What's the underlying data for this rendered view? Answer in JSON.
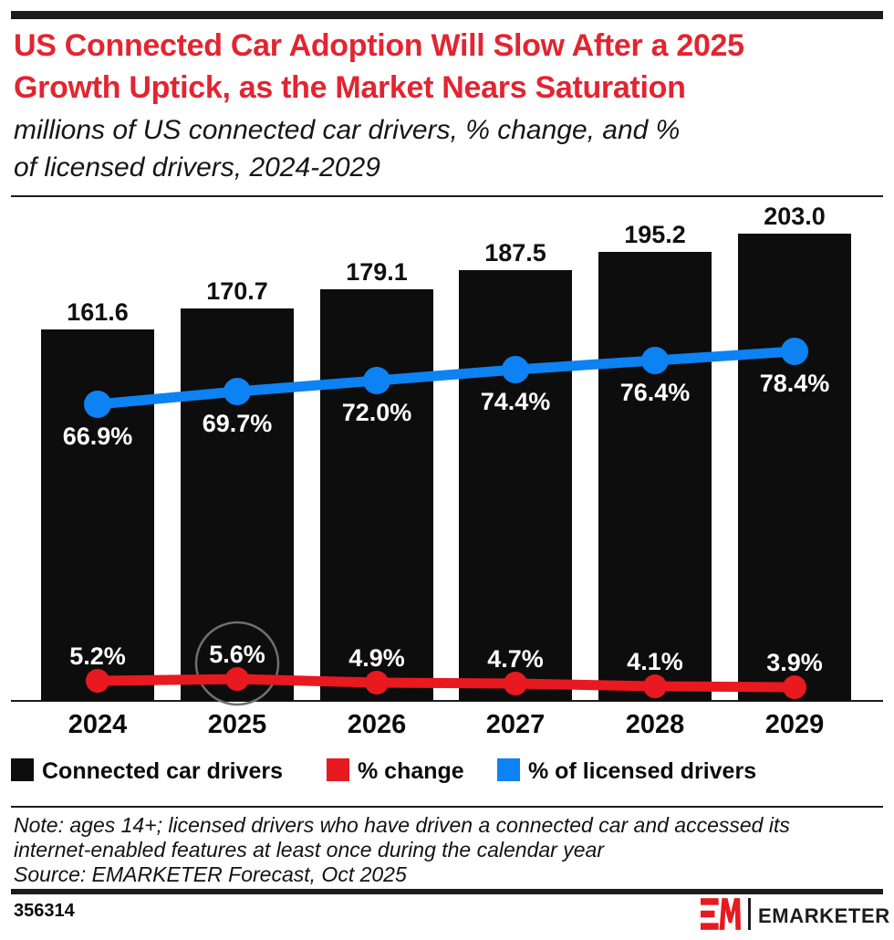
{
  "header": {
    "title_lines": [
      "US Connected Car Adoption Will Slow After a 2025",
      "Growth Uptick, as the Market Nears Saturation"
    ],
    "subtitle_lines": [
      "millions of US connected car drivers, % change, and %",
      "of licensed drivers, 2024-2029"
    ]
  },
  "chart_data": {
    "type": "combo-bar-line",
    "categories": [
      "2024",
      "2025",
      "2026",
      "2027",
      "2028",
      "2029"
    ],
    "series": [
      {
        "name": "Connected car drivers",
        "type": "bar",
        "unit": "millions",
        "color": "#0d0d0d",
        "values": [
          161.6,
          170.7,
          179.1,
          187.5,
          195.2,
          203.0
        ]
      },
      {
        "name": "% change",
        "type": "line",
        "unit": "%",
        "color": "#e8191f",
        "values": [
          5.2,
          5.6,
          4.9,
          4.7,
          4.1,
          3.9
        ]
      },
      {
        "name": "% of licensed drivers",
        "type": "line",
        "unit": "%",
        "color": "#0d82f2",
        "values": [
          66.9,
          69.7,
          72.0,
          74.4,
          76.4,
          78.4
        ]
      }
    ],
    "highlight": {
      "series": "% change",
      "category": "2025",
      "value": 5.6,
      "shape": "circle",
      "color": "#6f6f6f"
    },
    "legend_position": "bottom",
    "grid": false,
    "value_labels": true
  },
  "footnote": {
    "note_lines": [
      "Note: ages 14+; licensed drivers who have driven a connected car and accessed its",
      "internet-enabled features at least once during the calendar year"
    ],
    "source": "Source: EMARKETER Forecast, Oct 2025"
  },
  "footer": {
    "chart_id": "356314",
    "brand": "EMARKETER"
  },
  "colors": {
    "title_red": "#e42430",
    "accent_bar": "#0d0d0d"
  }
}
